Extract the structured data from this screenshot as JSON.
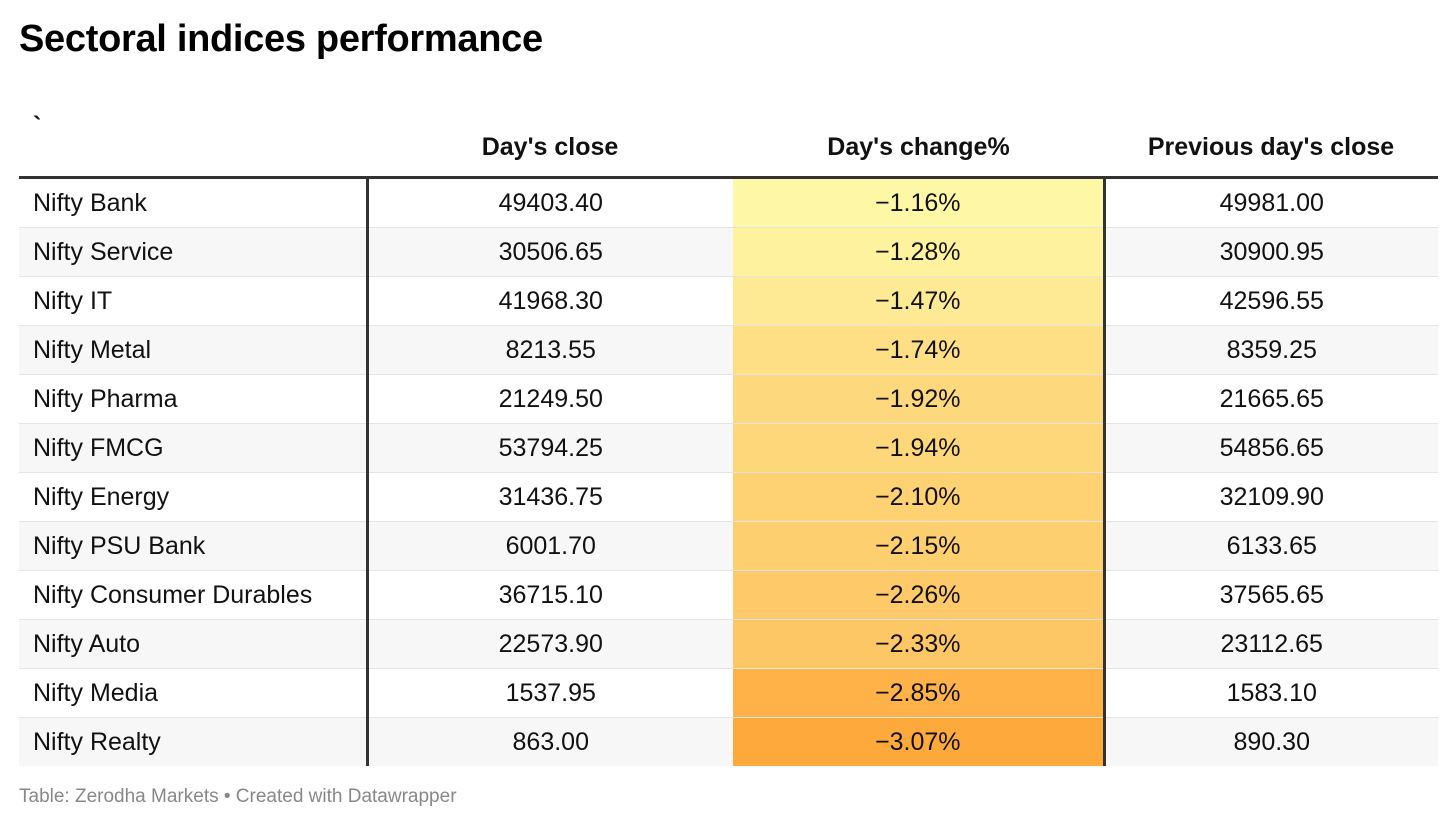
{
  "title": "Sectoral indices performance",
  "footer": "Table: Zerodha Markets • Created with Datawrapper",
  "colors": {
    "heat_low": "#fef7a6",
    "heat_high": "#fea93c",
    "rule": "#333333"
  },
  "chart_data": {
    "type": "table",
    "title": "Sectoral indices performance",
    "columns": [
      "`",
      "Day's close",
      "Day's change%",
      "Previous day's close"
    ],
    "rows": [
      {
        "name": "Nifty Bank",
        "close": "49403.40",
        "change": "−1.16%",
        "change_value": -1.16,
        "prev": "49981.00"
      },
      {
        "name": "Nifty Service",
        "close": "30506.65",
        "change": "−1.28%",
        "change_value": -1.28,
        "prev": "30900.95"
      },
      {
        "name": "Nifty IT",
        "close": "41968.30",
        "change": "−1.47%",
        "change_value": -1.47,
        "prev": "42596.55"
      },
      {
        "name": "Nifty Metal",
        "close": "8213.55",
        "change": "−1.74%",
        "change_value": -1.74,
        "prev": "8359.25"
      },
      {
        "name": "Nifty Pharma",
        "close": "21249.50",
        "change": "−1.92%",
        "change_value": -1.92,
        "prev": "21665.65"
      },
      {
        "name": "Nifty FMCG",
        "close": "53794.25",
        "change": "−1.94%",
        "change_value": -1.94,
        "prev": "54856.65"
      },
      {
        "name": "Nifty Energy",
        "close": "31436.75",
        "change": "−2.10%",
        "change_value": -2.1,
        "prev": "32109.90"
      },
      {
        "name": "Nifty PSU Bank",
        "close": "6001.70",
        "change": "−2.15%",
        "change_value": -2.15,
        "prev": "6133.65"
      },
      {
        "name": "Nifty Consumer Durables",
        "close": "36715.10",
        "change": "−2.26%",
        "change_value": -2.26,
        "prev": "37565.65"
      },
      {
        "name": "Nifty Auto",
        "close": "22573.90",
        "change": "−2.33%",
        "change_value": -2.33,
        "prev": "23112.65"
      },
      {
        "name": "Nifty Media",
        "close": "1537.95",
        "change": "−2.85%",
        "change_value": -2.85,
        "prev": "1583.10"
      },
      {
        "name": "Nifty Realty",
        "close": "863.00",
        "change": "−3.07%",
        "change_value": -3.07,
        "prev": "890.30"
      }
    ]
  }
}
